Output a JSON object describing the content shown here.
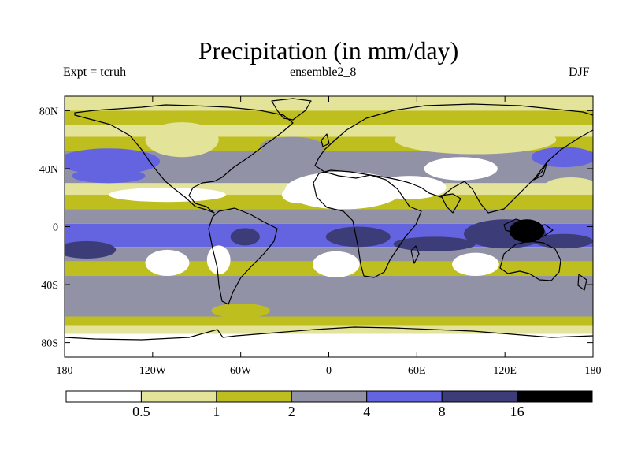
{
  "chart_data": {
    "type": "heatmap",
    "title": "Precipitation (in mm/day)",
    "subtitle_left": "Expt = tcruh",
    "subtitle_center": "ensemble2_8",
    "subtitle_right": "DJF",
    "projection": "cylindrical equidistant",
    "xlim": [
      -180,
      180
    ],
    "ylim": [
      -90,
      90
    ],
    "x_ticks": [
      {
        "value": -180,
        "label": "180"
      },
      {
        "value": -120,
        "label": "120W"
      },
      {
        "value": -60,
        "label": "60W"
      },
      {
        "value": 0,
        "label": "0"
      },
      {
        "value": 60,
        "label": "60E"
      },
      {
        "value": 120,
        "label": "120E"
      },
      {
        "value": 180,
        "label": "180"
      }
    ],
    "y_ticks": [
      {
        "value": 80,
        "label": "80N"
      },
      {
        "value": 40,
        "label": "40N"
      },
      {
        "value": 0,
        "label": "0"
      },
      {
        "value": -40,
        "label": "40S"
      },
      {
        "value": -80,
        "label": "80S"
      }
    ],
    "colorbar": {
      "levels": [
        "0.5",
        "1",
        "2",
        "4",
        "8",
        "16"
      ],
      "colors": [
        "#ffffff",
        "#e3e39a",
        "#bebe1e",
        "#9292a6",
        "#6464e0",
        "#3c3c78",
        "#000000"
      ]
    },
    "field_bands": [
      {
        "lat": [
          90,
          80
        ],
        "level": 1
      },
      {
        "lat": [
          80,
          70
        ],
        "level": 2
      },
      {
        "lat": [
          70,
          62
        ],
        "level": 1
      },
      {
        "lat": [
          62,
          52
        ],
        "level": 2
      },
      {
        "lat": [
          52,
          30
        ],
        "level": 3
      },
      {
        "lat": [
          30,
          22
        ],
        "level": 1
      },
      {
        "lat": [
          22,
          12
        ],
        "level": 2
      },
      {
        "lat": [
          12,
          2
        ],
        "level": 3
      },
      {
        "lat": [
          2,
          -14
        ],
        "level": 4
      },
      {
        "lat": [
          -14,
          -24
        ],
        "level": 3
      },
      {
        "lat": [
          -24,
          -34
        ],
        "level": 2
      },
      {
        "lat": [
          -34,
          -62
        ],
        "level": 3
      },
      {
        "lat": [
          -62,
          -68
        ],
        "level": 2
      },
      {
        "lat": [
          -68,
          -74
        ],
        "level": 1
      },
      {
        "lat": [
          -74,
          -90
        ],
        "level": 0
      }
    ],
    "field_blobs": [
      {
        "lon": -150,
        "lat": 45,
        "rlon": 35,
        "rlat": 9,
        "level": 4
      },
      {
        "lon": -150,
        "lat": 35,
        "rlon": 25,
        "rlat": 5,
        "level": 4
      },
      {
        "lon": -25,
        "lat": 55,
        "rlon": 22,
        "rlat": 7,
        "level": 3
      },
      {
        "lon": 160,
        "lat": 48,
        "rlon": 22,
        "rlat": 7,
        "level": 4
      },
      {
        "lon": 10,
        "lat": 25,
        "rlon": 40,
        "rlat": 13,
        "level": 0
      },
      {
        "lon": 55,
        "lat": 27,
        "rlon": 25,
        "rlat": 8,
        "level": 0
      },
      {
        "lon": 90,
        "lat": 40,
        "rlon": 25,
        "rlat": 8,
        "level": 0
      },
      {
        "lon": -110,
        "lat": 22,
        "rlon": 40,
        "rlat": 5,
        "level": 0
      },
      {
        "lon": -100,
        "lat": 60,
        "rlon": 25,
        "rlat": 12,
        "level": 1
      },
      {
        "lon": 100,
        "lat": 60,
        "rlon": 55,
        "rlat": 10,
        "level": 1
      },
      {
        "lon": -20,
        "lat": 22,
        "rlon": 12,
        "rlat": 6,
        "level": 0
      },
      {
        "lon": -110,
        "lat": -25,
        "rlon": 15,
        "rlat": 9,
        "level": 0
      },
      {
        "lon": -75,
        "lat": -23,
        "rlon": 8,
        "rlat": 10,
        "level": 0
      },
      {
        "lon": 5,
        "lat": -26,
        "rlon": 16,
        "rlat": 9,
        "level": 0
      },
      {
        "lon": 100,
        "lat": -26,
        "rlon": 16,
        "rlat": 8,
        "level": 0
      },
      {
        "lon": -165,
        "lat": -16,
        "rlon": 20,
        "rlat": 6,
        "level": 5
      },
      {
        "lon": -57,
        "lat": -7,
        "rlon": 10,
        "rlat": 6,
        "level": 5
      },
      {
        "lon": 20,
        "lat": -7,
        "rlon": 22,
        "rlat": 7,
        "level": 5
      },
      {
        "lon": 72,
        "lat": -12,
        "rlon": 28,
        "rlat": 5,
        "level": 5
      },
      {
        "lon": 120,
        "lat": -5,
        "rlon": 28,
        "rlat": 10,
        "level": 5
      },
      {
        "lon": 160,
        "lat": -10,
        "rlon": 20,
        "rlat": 5,
        "level": 5
      },
      {
        "lon": 135,
        "lat": -3,
        "rlon": 12,
        "rlat": 8,
        "level": 6
      },
      {
        "lon": 165,
        "lat": 28,
        "rlon": 18,
        "rlat": 6,
        "level": 1
      },
      {
        "lon": -60,
        "lat": -58,
        "rlon": 20,
        "rlat": 5,
        "level": 2
      }
    ]
  }
}
